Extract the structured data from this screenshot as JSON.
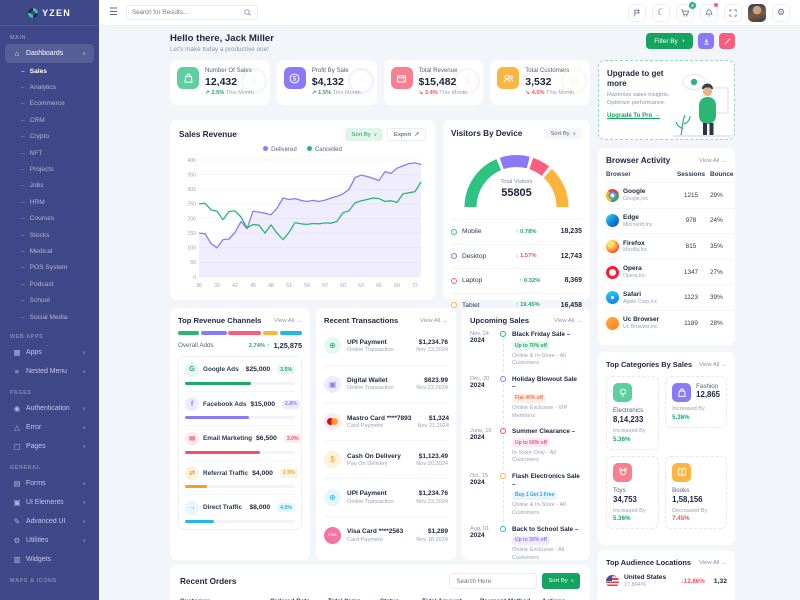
{
  "labels": {
    "sort_by": "Sort By",
    "view_all": "View All",
    "export": "Export"
  },
  "colors": {
    "green": "#2bb673",
    "primary_green": "#15a45f",
    "purple": "#8b7af7",
    "pink": "#fb5d81",
    "orange": "#fdb43a",
    "blue": "#23b7e5",
    "sidebar": "#3f4889"
  },
  "sidebar": {
    "logo": "YZEN",
    "sections": [
      {
        "label": "MAIN",
        "items": [
          {
            "label": "Dashboards",
            "icon": "home",
            "chevron": "up",
            "active": true,
            "children": [
              "Sales",
              "Analytics",
              "Ecommerce",
              "CRM",
              "Crypto",
              "NFT",
              "Projects",
              "Jobs",
              "HRM",
              "Courses",
              "Stocks",
              "Medical",
              "POS System",
              "Podcast",
              "School",
              "Social Media"
            ],
            "active_child": "Sales"
          }
        ]
      },
      {
        "label": "WEB APPS",
        "items": [
          {
            "label": "Apps",
            "icon": "apps",
            "chevron": "down"
          },
          {
            "label": "Nested Menu",
            "icon": "nested",
            "chevron": "down"
          }
        ]
      },
      {
        "label": "PAGES",
        "items": [
          {
            "label": "Authentication",
            "icon": "auth",
            "chevron": "down"
          },
          {
            "label": "Error",
            "icon": "error",
            "chevron": "down"
          },
          {
            "label": "Pages",
            "icon": "pages",
            "chevron": "down"
          }
        ]
      },
      {
        "label": "GENERAL",
        "items": [
          {
            "label": "Forms",
            "icon": "forms",
            "chevron": "down"
          },
          {
            "label": "UI Elements",
            "icon": "ui",
            "chevron": "down"
          },
          {
            "label": "Advanced UI",
            "icon": "advanced",
            "chevron": "down"
          },
          {
            "label": "Utilities",
            "icon": "utilities",
            "chevron": "down"
          },
          {
            "label": "Widgets",
            "icon": "widgets"
          }
        ]
      },
      {
        "label": "MAPS & ICONS",
        "items": []
      }
    ]
  },
  "header": {
    "search_placeholder": "Search for Results...",
    "cart_badge": "5"
  },
  "greeting": {
    "title": "Hello there, Jack Miller",
    "subtitle": "Let's make today a productive one!"
  },
  "actions": {
    "filter_label": "Filter By"
  },
  "stats": [
    {
      "title": "Number Of Sales",
      "value": "12,432",
      "change": "2.5%",
      "up": true,
      "note": "This Month",
      "icon": "shopping-bag-icon",
      "glyph": "bag",
      "bg": "#5ecf9f",
      "wm": "money-bag",
      "wmglyph": "$"
    },
    {
      "title": "Profit By Sale",
      "value": "$4,132",
      "change": "1.5%",
      "up": true,
      "note": "This Month",
      "icon": "dollar-circle-icon",
      "glyph": "dollar",
      "bg": "#8b7af7",
      "wm": "briefcase",
      "wmglyph": "▭"
    },
    {
      "title": "Total Revenue",
      "value": "$15,482",
      "change": "3.4%",
      "up": false,
      "note": "This Month",
      "icon": "wallet-icon",
      "glyph": "wallet",
      "bg": "#f8808e",
      "wm": "coin",
      "wmglyph": "$"
    },
    {
      "title": "Total Customers",
      "value": "3,532",
      "change": "4.5%",
      "up": false,
      "note": "This Month",
      "icon": "customers-icon",
      "glyph": "users",
      "bg": "#fcb543",
      "wm": "bank",
      "wmglyph": "▦"
    }
  ],
  "upgrade": {
    "title": "Upgrade to get more",
    "desc": "Maximize sales insights. Optimize performance.",
    "link": "Upgrade To Pro →"
  },
  "sales_revenue": {
    "title": "Sales Revenue",
    "chart_data": {
      "type": "line",
      "x": [
        36,
        37,
        38,
        39,
        40,
        41,
        42,
        43,
        44,
        45,
        46,
        47,
        48,
        49,
        50,
        51,
        52,
        53,
        54,
        55,
        56,
        57,
        58,
        59,
        60,
        61,
        62,
        63,
        64,
        65,
        66,
        67,
        68,
        69,
        70,
        71,
        72,
        73
      ],
      "xticks": [
        36,
        39,
        42,
        45,
        48,
        51,
        54,
        57,
        60,
        63,
        66,
        69,
        72
      ],
      "ylim": [
        0,
        400
      ],
      "ystep": 50,
      "grid": true,
      "legend_position": "top",
      "series": [
        {
          "name": "Delivered",
          "color": "#8b7af7",
          "fill": "rgba(139,122,247,0.13)",
          "values": [
            150,
            148,
            115,
            100,
            128,
            130,
            152,
            190,
            165,
            225,
            222,
            218,
            213,
            235,
            270,
            265,
            268,
            262,
            258,
            262,
            258,
            263,
            270,
            276,
            284,
            300,
            340,
            348,
            344,
            337,
            330,
            360,
            355,
            372,
            380,
            388,
            390,
            385
          ]
        },
        {
          "name": "Cancelled",
          "color": "#2bb673",
          "values": [
            250,
            252,
            230,
            225,
            196,
            224,
            226,
            205,
            168,
            180,
            177,
            150,
            178,
            150,
            128,
            152,
            186,
            182,
            180,
            183,
            182,
            185,
            184,
            190,
            220,
            226,
            254,
            260,
            265,
            270,
            268,
            258,
            261,
            255,
            284,
            288,
            292,
            325
          ]
        }
      ]
    }
  },
  "visitors": {
    "title": "Visitors By Device",
    "total_label": "Total Visitors",
    "total": "55805",
    "chart_data": {
      "type": "gauge-donut",
      "segments": [
        {
          "name": "Mobile",
          "value": "18,235",
          "change": "0.78%",
          "up": true,
          "color": "#2dc483",
          "arc_fraction": 0.4
        },
        {
          "name": "Desktop",
          "value": "12,743",
          "change": "1.57%",
          "up": false,
          "color": "#8b7af7",
          "arc_fraction": 0.2
        },
        {
          "name": "Laptop",
          "value": "8,369",
          "change": "0.32%",
          "up": true,
          "color": "#fb5d81",
          "arc_fraction": 0.12
        },
        {
          "name": "Tablet",
          "value": "16,458",
          "change": "19.45%",
          "up": true,
          "color": "#fdb43a",
          "arc_fraction": 0.28
        }
      ]
    }
  },
  "browser_activity": {
    "title": "Browser Activity",
    "columns": [
      "Browser",
      "Sessions",
      "Bounce Rate"
    ],
    "rows": [
      {
        "name": "Google",
        "company": "Google,Inc",
        "sessions": "1215",
        "bounce": "29%",
        "icon": "chrome-icon",
        "cls": "chrome"
      },
      {
        "name": "Edge",
        "company": "Microsoft,Inc",
        "sessions": "978",
        "bounce": "24%",
        "icon": "edge-icon",
        "cls": "edge"
      },
      {
        "name": "Firefox",
        "company": "Mozilla,Inc",
        "sessions": "815",
        "bounce": "35%",
        "icon": "firefox-icon",
        "cls": "firefox"
      },
      {
        "name": "Opera",
        "company": "Opera,Inc",
        "sessions": "1347",
        "bounce": "27%",
        "icon": "opera-icon",
        "cls": "opera"
      },
      {
        "name": "Safari",
        "company": "Apple Corp,Inc",
        "sessions": "1123",
        "bounce": "39%",
        "icon": "safari-icon",
        "cls": "safari"
      },
      {
        "name": "Uc Browser",
        "company": "Uc Browser,Inc",
        "sessions": "1189",
        "bounce": "28%",
        "icon": "uc-browser-icon",
        "cls": "uc"
      }
    ]
  },
  "top_revenue": {
    "title": "Top Revenue Channels",
    "overall_label": "Overall Adds",
    "overall_change": "2.74% ↑",
    "overall_value": "1,25,875",
    "bar_segments": [
      {
        "color": "#2bb673",
        "width": 18
      },
      {
        "color": "#8b7af7",
        "width": 22
      },
      {
        "color": "#fb5d81",
        "width": 28
      },
      {
        "color": "#fdb43a",
        "width": 13
      },
      {
        "color": "#23b7e5",
        "width": 19
      }
    ],
    "channels": [
      {
        "name": "Google Ads",
        "value": "$25,000",
        "badge": "3.5%",
        "icon": "google-ads-icon",
        "glyph": "G",
        "fg": "#1fa968",
        "tint": "#e7f7ef",
        "progress": 60
      },
      {
        "name": "Facebook Ads",
        "value": "$15,000",
        "badge": "2.8%",
        "icon": "facebook-ads-icon",
        "glyph": "f",
        "fg": "#8b7af7",
        "tint": "#eeebfe",
        "progress": 58
      },
      {
        "name": "Email Marketing",
        "value": "$6,500",
        "badge": "3.0%",
        "icon": "email-icon",
        "glyph": "✉",
        "fg": "#fb4c61",
        "tint": "#fdeaef",
        "progress": 68
      },
      {
        "name": "Referral Traffic",
        "value": "$4,000",
        "badge": "2.5%",
        "icon": "referral-icon",
        "glyph": "⇄",
        "fg": "#f0a12c",
        "tint": "#fef2dd",
        "progress": 20
      },
      {
        "name": "Direct Traffic",
        "value": "$8,000",
        "badge": "4.0%",
        "icon": "direct-icon",
        "glyph": "→",
        "fg": "#23b7e5",
        "tint": "#e5f6fc",
        "progress": 26
      }
    ]
  },
  "transactions": {
    "title": "Recent Transactions",
    "rows": [
      {
        "title": "UPI Payment",
        "subtitle": "Online Transaction",
        "amount": "$1,234.76",
        "date": "Nov 22,2024",
        "icon": "upi-icon",
        "glyph": "⊕",
        "fg": "#1fa968",
        "tint": "#e7f7ef"
      },
      {
        "title": "Digital Wallet",
        "subtitle": "Online Transaction",
        "amount": "$623.99",
        "date": "Nov 22,2024",
        "icon": "wallet-icon",
        "glyph": "▣",
        "fg": "#8b7af7",
        "tint": "#eeebfe"
      },
      {
        "title": "Mastro Card ****7893",
        "subtitle": "Card Payment",
        "amount": "$1,324",
        "date": "Nov 21,2024",
        "icon": "mastercard-icon",
        "glyph": "mc",
        "fg": "#fb4c61",
        "tint": "#fdeaef"
      },
      {
        "title": "Cash On Delivery",
        "subtitle": "Pay On Delivery",
        "amount": "$1,123.49",
        "date": "Nov 20,2024",
        "icon": "cash-icon",
        "glyph": "$",
        "fg": "#f0a12c",
        "tint": "#fef2dd"
      },
      {
        "title": "UPI Payment",
        "subtitle": "Online Transaction",
        "amount": "$1,234.76",
        "date": "Nov 22,2024",
        "icon": "upi-icon",
        "glyph": "⊕",
        "fg": "#23b7e5",
        "tint": "#e5f6fc"
      },
      {
        "title": "Visa Card ****2563",
        "subtitle": "Card Payment",
        "amount": "$1,289",
        "date": "Nov 18,2024",
        "icon": "visa-icon",
        "glyph": "visa",
        "fg": "#f55c93",
        "tint": "#f773a1"
      }
    ]
  },
  "upcoming": {
    "title": "Upcoming Sales",
    "items": [
      {
        "date": "Nov, 24",
        "year": "2024",
        "dot": "#2bb673",
        "title": "Black Friday Sale –",
        "badge": "Up to 70% off",
        "badge_bg": "#e4f7ee",
        "badge_fg": "#1fa968",
        "desc": "Online & In-Store - All Customers"
      },
      {
        "date": "Dec, 20",
        "year": "2024",
        "dot": "#8b7af7",
        "title": "Holiday Blowout Sale –",
        "badge": "Flat 40% off",
        "badge_bg": "#fdeee7",
        "badge_fg": "#f5734c",
        "desc": "Online Exclusive - VIP Members"
      },
      {
        "date": "June, 10",
        "year": "2024",
        "dot": "#fb4c61",
        "title": "Summer Clearance –",
        "badge": "Up to 50% off",
        "badge_bg": "#fdeaf0",
        "badge_fg": "#f54f7e",
        "desc": "In-Store Only - All Customers"
      },
      {
        "date": "Oct, 15",
        "year": "2024",
        "dot": "#fdb43a",
        "title": "Flash Electronics Sale –",
        "badge": "Buy 1 Get 1 Free",
        "badge_bg": "#e7f4fd",
        "badge_fg": "#2da7e0",
        "desc": "Online & In-Store - All Customers"
      },
      {
        "date": "Aug, 01",
        "year": "2024",
        "dot": "#23b7e5",
        "title": "Back to School Sale –",
        "badge": "Up to 30% off",
        "badge_bg": "#efecfe",
        "badge_fg": "#8b7af7",
        "desc": "Online Exclusive - All Customers"
      }
    ]
  },
  "categories": {
    "title": "Top Categories By Sales",
    "cards": [
      {
        "name": "Electronics",
        "value": "8,14,233",
        "note": "Increased By",
        "pct": "5.36%",
        "up": true,
        "icon": "bulb-icon",
        "glyph": "bulb",
        "bg": "#5ecf9f",
        "layout": "stack"
      },
      {
        "name": "Fashion",
        "value": "12,865",
        "note": "Increased By",
        "pct": "5.36%",
        "up": true,
        "icon": "handbag-icon",
        "glyph": "bag",
        "bg": "#8b7af7",
        "layout": "row"
      },
      {
        "name": "Toys",
        "value": "34,753",
        "note": "Increased By",
        "pct": "5.36%",
        "up": true,
        "icon": "toy-icon",
        "glyph": "toy",
        "bg": "#f8808e",
        "layout": "stack"
      },
      {
        "name": "Books",
        "value": "1,58,156",
        "note": "Decreased By",
        "pct": "7.45%",
        "up": false,
        "icon": "book-icon",
        "glyph": "book",
        "bg": "#fcb543",
        "layout": "stack"
      }
    ]
  },
  "audience": {
    "title": "Top Audience Locations",
    "rows": [
      {
        "country": "United States",
        "sub": "17.864%",
        "change": "↓12.86%",
        "value": "1,32",
        "icon": "us-flag-icon"
      }
    ]
  },
  "orders": {
    "title": "Recent Orders",
    "search_placeholder": "Search Here",
    "sort_label": "Sort By",
    "columns": [
      "Customer",
      "Ordered Date",
      "Total Items",
      "Status",
      "Total Amount",
      "Payment Method",
      "Actions"
    ]
  }
}
